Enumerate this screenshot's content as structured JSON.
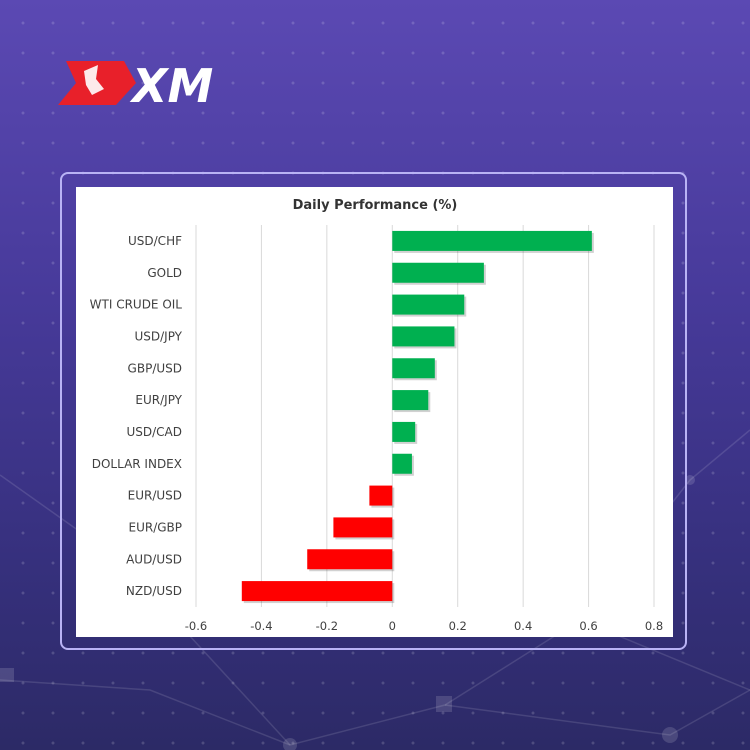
{
  "brand": {
    "logo_text": "XM"
  },
  "colors": {
    "positive": "#00b050",
    "negative": "#ff0000",
    "brand_red": "#e8202a"
  },
  "chart_data": {
    "type": "bar",
    "orientation": "horizontal",
    "title": "Daily Performance (%)",
    "categories": [
      "USD/CHF",
      "GOLD",
      "WTI CRUDE OIL",
      "USD/JPY",
      "GBP/USD",
      "EUR/JPY",
      "USD/CAD",
      "DOLLAR INDEX",
      "EUR/USD",
      "EUR/GBP",
      "AUD/USD",
      "NZD/USD"
    ],
    "values": [
      0.61,
      0.28,
      0.22,
      0.19,
      0.13,
      0.11,
      0.07,
      0.06,
      -0.07,
      -0.18,
      -0.26,
      -0.46
    ],
    "xlim": [
      -0.6,
      0.8
    ],
    "xticks": [
      "-0.6",
      "-0.4",
      "-0.2",
      "0",
      "0.2",
      "0.4",
      "0.6",
      "0.8"
    ],
    "grid": true,
    "legend": "none"
  }
}
